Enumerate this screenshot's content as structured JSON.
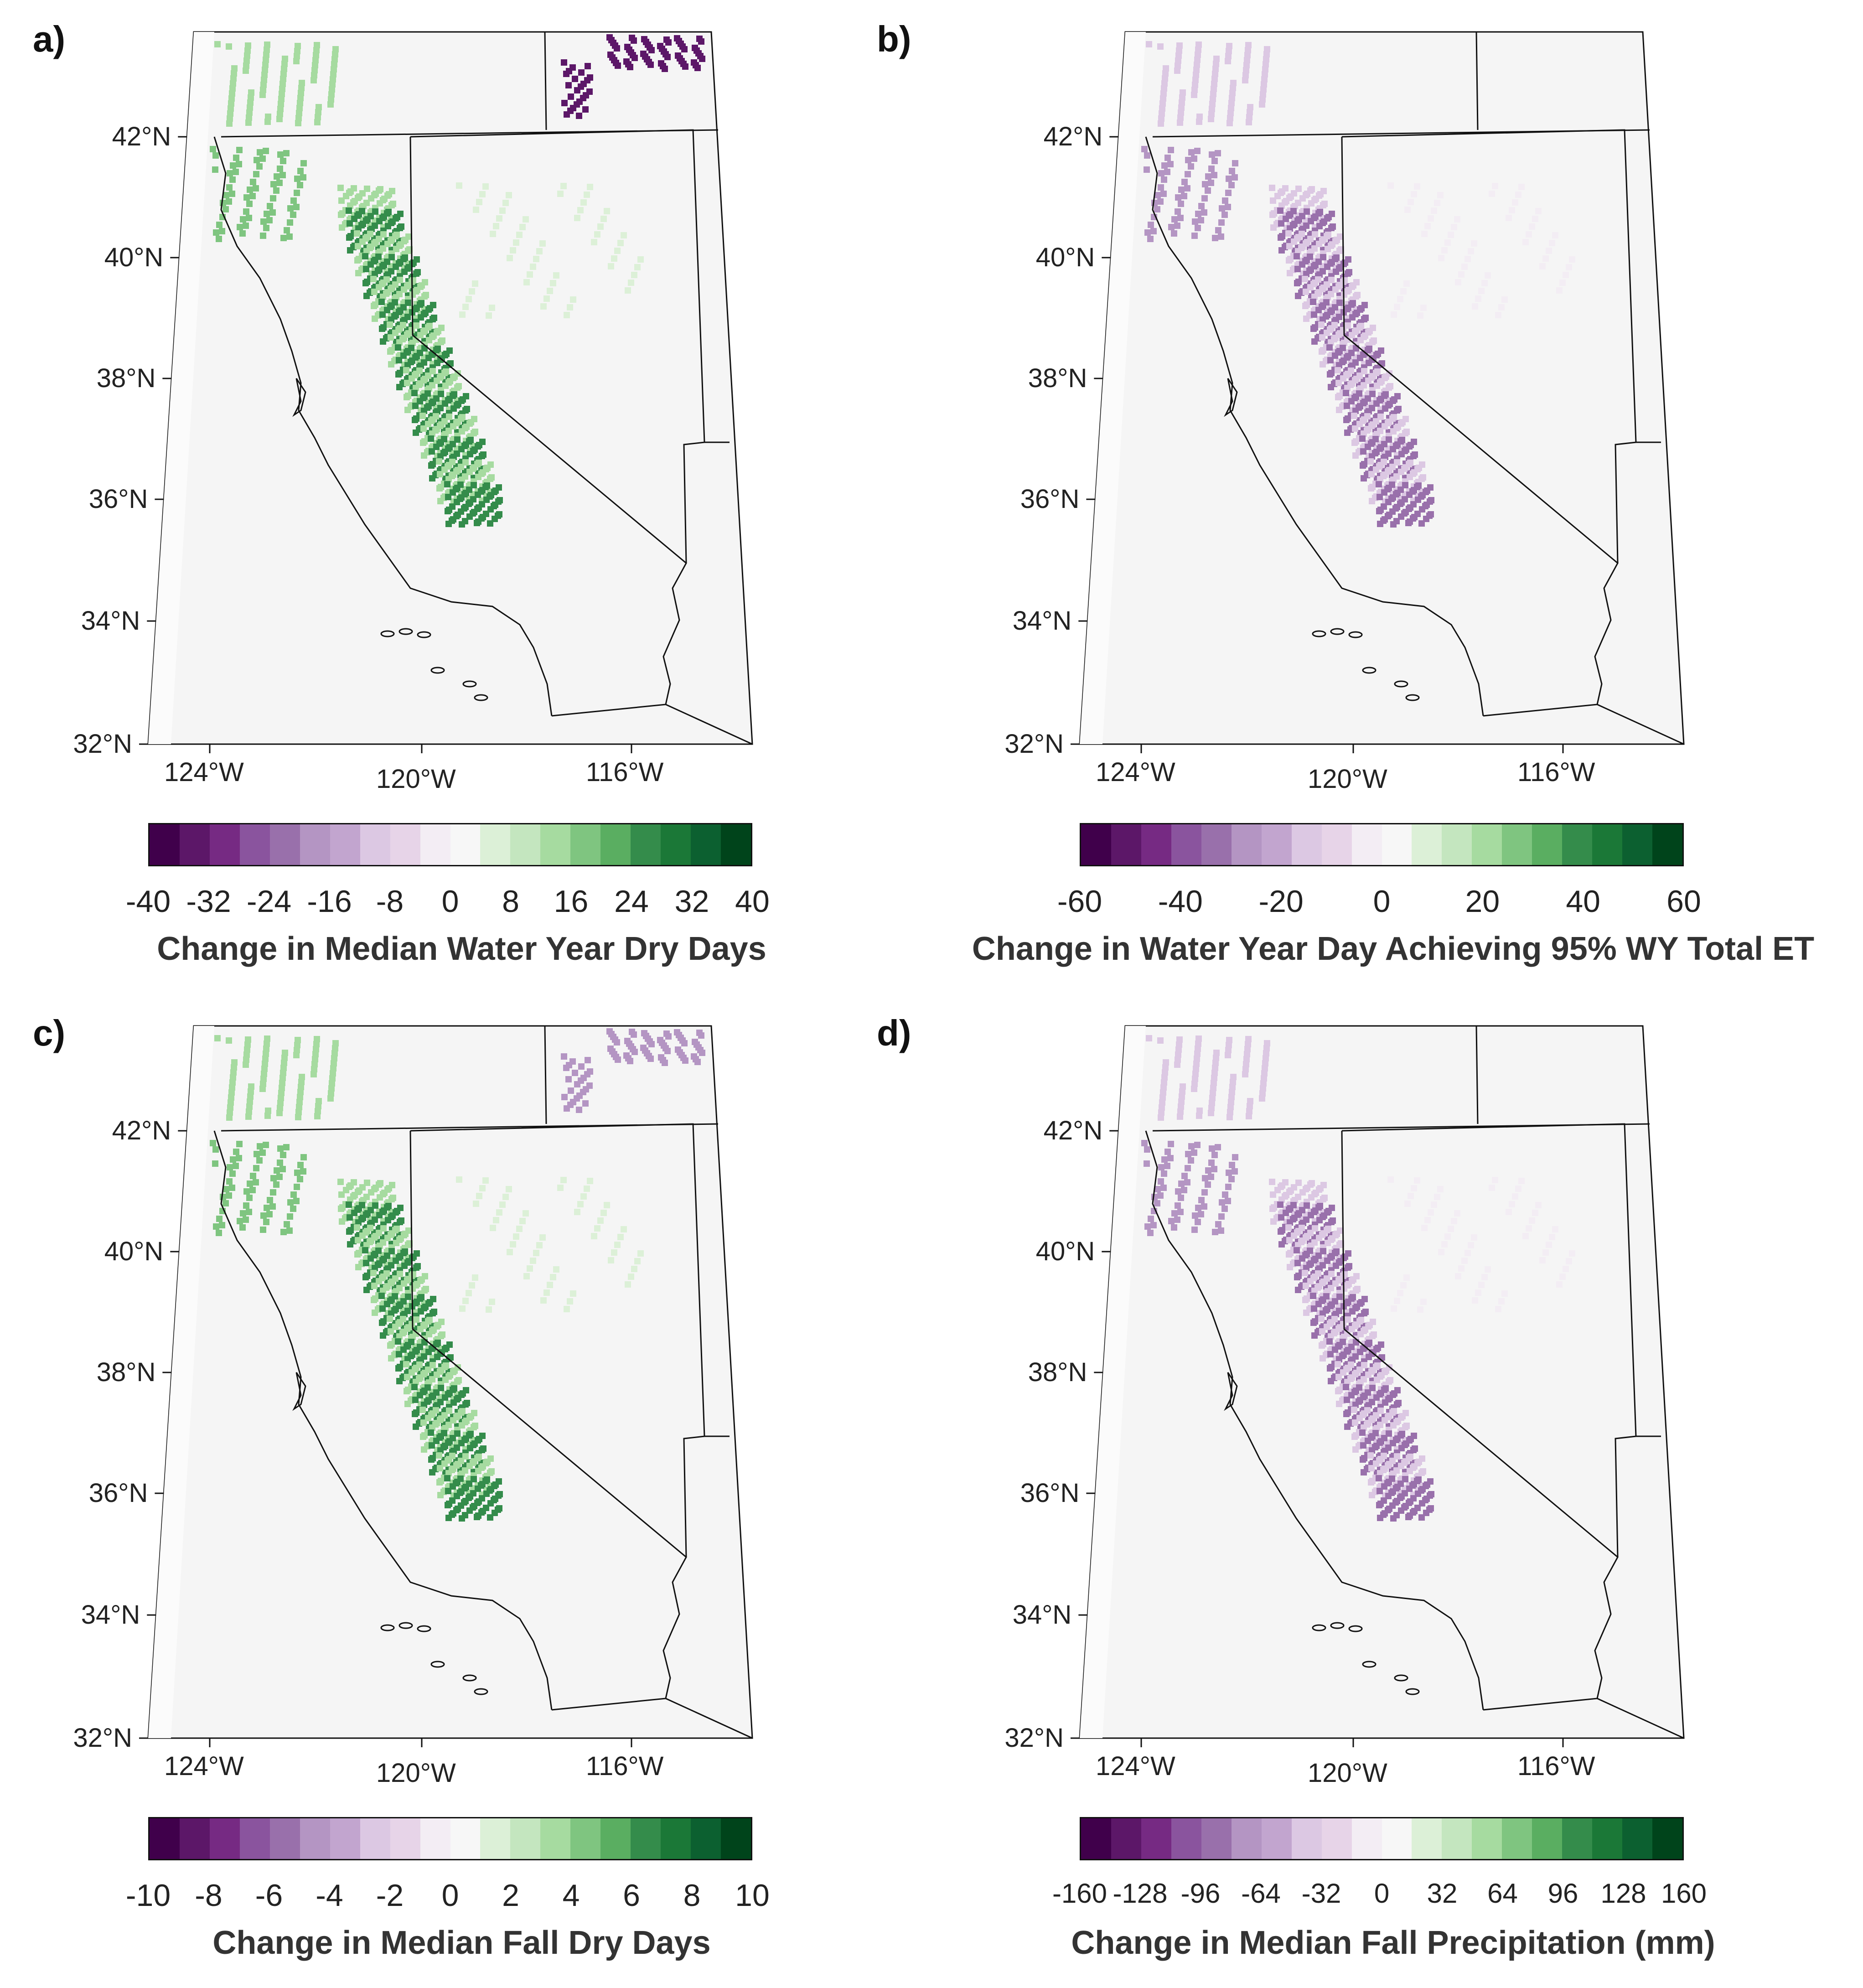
{
  "palette": [
    "#40004b",
    "#5c1768",
    "#762a83",
    "#8a549e",
    "#9970ab",
    "#b495c3",
    "#c2a5cf",
    "#dcc8e3",
    "#e7d4e8",
    "#f3edf4",
    "#f7f7f7",
    "#dcf0d7",
    "#c4e6bf",
    "#a6dba0",
    "#7fc580",
    "#5aae61",
    "#348c4b",
    "#1b7837",
    "#0c6030",
    "#00441b"
  ],
  "map_background": "#f5f5f5",
  "lat_labels": [
    "42°N",
    "40°N",
    "38°N",
    "36°N",
    "34°N",
    "32°N"
  ],
  "lon_labels": [
    "124°W",
    "120°W",
    "116°W"
  ],
  "panels": [
    {
      "letter": "a)",
      "colorbar_title": "Change in Median Water Year Dry Days",
      "colorbar_ticks": [
        "-40",
        "-32",
        "-24",
        "-16",
        "-8",
        "0",
        "8",
        "16",
        "24",
        "32",
        "40"
      ],
      "colorbar_range": [
        -40,
        40
      ]
    },
    {
      "letter": "b)",
      "colorbar_title": "Change in Water Year Day Achieving 95% WY Total ET",
      "colorbar_ticks": [
        "-60",
        "-40",
        "-20",
        "0",
        "20",
        "40",
        "60"
      ],
      "colorbar_range": [
        -60,
        60
      ]
    },
    {
      "letter": "c)",
      "colorbar_title": "Change in Median Fall Dry Days",
      "colorbar_ticks": [
        "-10",
        "-8",
        "-6",
        "-4",
        "-2",
        "0",
        "2",
        "4",
        "6",
        "8",
        "10"
      ],
      "colorbar_range": [
        -10,
        10
      ]
    },
    {
      "letter": "d)",
      "colorbar_title": "Change in Median Fall Precipitation (mm)",
      "colorbar_ticks": [
        "-160",
        "-128",
        "-96",
        "-64",
        "-32",
        "0",
        "32",
        "64",
        "96",
        "128",
        "160"
      ],
      "colorbar_range": [
        -160,
        160
      ]
    }
  ]
}
